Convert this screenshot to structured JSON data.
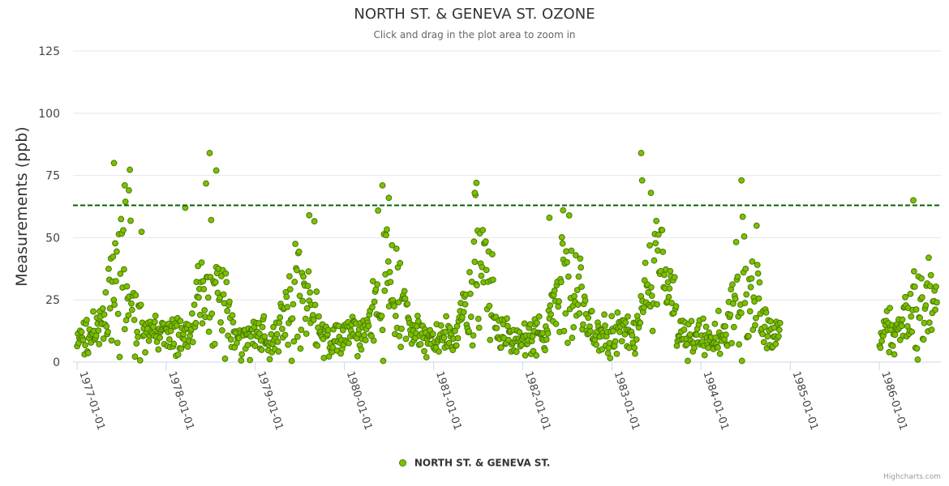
{
  "chart_data": {
    "type": "scatter",
    "title": "NORTH ST. & GENEVA ST. OZONE",
    "subtitle": "Click and drag in the plot area to zoom in",
    "ylabel": "Measurements (ppb)",
    "xlabel": "",
    "ylim": [
      0,
      125
    ],
    "yticks": [
      0,
      25,
      50,
      75,
      100,
      125
    ],
    "xlim": [
      "1976-12-15",
      "1986-09-10"
    ],
    "xticks": [
      "1977-01-01",
      "1978-01-01",
      "1979-01-01",
      "1980-01-01",
      "1981-01-01",
      "1982-01-01",
      "1983-01-01",
      "1984-01-01",
      "1985-01-01",
      "1986-01-01"
    ],
    "reference_line": {
      "value": 63,
      "color": "#006400",
      "style": "dashed"
    },
    "legend": {
      "position": "bottom-center",
      "entries": [
        "NORTH ST. & GENEVA ST."
      ]
    },
    "series": [
      {
        "name": "NORTH ST. & GENEVA ST.",
        "color": "#7cc000",
        "approximate": true,
        "note": "Daily ozone readings with strong summer peaks; data gap from Nov 1984 to Jan 1986",
        "seasonal_profile": {
          "1977": {
            "winter_low": 12,
            "summer_mean": 33,
            "summer_high": 80
          },
          "1978": {
            "winter_low": 10,
            "summer_mean": 35,
            "summer_high": 84
          },
          "1979": {
            "winter_low": 10,
            "summer_mean": 27,
            "summer_high": 59
          },
          "1980": {
            "winter_low": 11,
            "summer_mean": 33,
            "summer_high": 71
          },
          "1981": {
            "winter_low": 10,
            "summer_mean": 30,
            "summer_high": 72
          },
          "1982": {
            "winter_low": 11,
            "summer_mean": 30,
            "summer_high": 61
          },
          "1983": {
            "winter_low": 11,
            "summer_mean": 38,
            "summer_high": 84
          },
          "1984": {
            "winter_low": 11,
            "summer_mean": 30,
            "summer_high": 73
          },
          "1986": {
            "winter_low": 12,
            "summer_mean": 28,
            "summer_high": 65
          }
        },
        "outliers": [
          {
            "date": "1977-06-01",
            "value": 80
          },
          {
            "date": "1977-07-15",
            "value": 71
          },
          {
            "date": "1977-08-01",
            "value": 69
          },
          {
            "date": "1978-06-28",
            "value": 84
          },
          {
            "date": "1978-07-25",
            "value": 77
          },
          {
            "date": "1978-03-20",
            "value": 62
          },
          {
            "date": "1979-08-10",
            "value": 59
          },
          {
            "date": "1980-06-05",
            "value": 71
          },
          {
            "date": "1980-07-01",
            "value": 66
          },
          {
            "date": "1981-06-25",
            "value": 72
          },
          {
            "date": "1981-06-18",
            "value": 68
          },
          {
            "date": "1982-06-15",
            "value": 61
          },
          {
            "date": "1982-04-20",
            "value": 58
          },
          {
            "date": "1983-05-01",
            "value": 84
          },
          {
            "date": "1983-05-05",
            "value": 73
          },
          {
            "date": "1983-06-10",
            "value": 68
          },
          {
            "date": "1984-06-15",
            "value": 73
          },
          {
            "date": "1986-05-20",
            "value": 65
          }
        ]
      }
    ]
  },
  "credits": "Highcharts.com"
}
